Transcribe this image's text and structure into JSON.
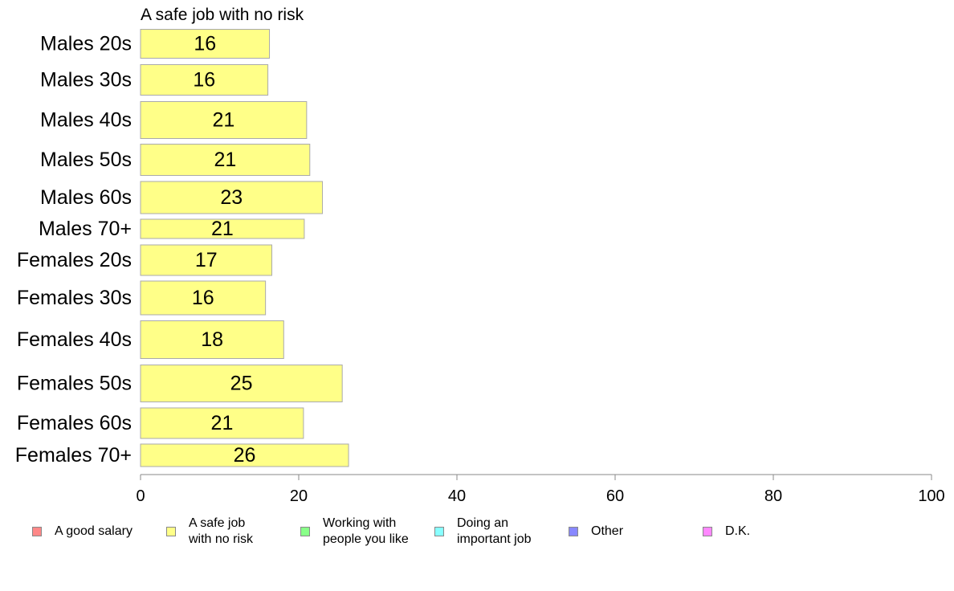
{
  "chart_data": {
    "type": "bar",
    "orientation": "horizontal",
    "title": "A safe job with no risk",
    "categories": [
      "Males 20s",
      "Males 30s",
      "Males 40s",
      "Males 50s",
      "Males 60s",
      "Males 70+",
      "Females 20s",
      "Females 30s",
      "Females 40s",
      "Females 50s",
      "Females 60s",
      "Females 70+"
    ],
    "series": [
      {
        "name": "A safe job\nwith no risk",
        "color": "#ffff88",
        "values": [
          16.3,
          16.1,
          21.0,
          21.4,
          23.0,
          20.7,
          16.6,
          15.8,
          18.1,
          25.5,
          20.6,
          26.3
        ],
        "labels": [
          "16",
          "16",
          "21",
          "21",
          "23",
          "21",
          "17",
          "16",
          "18",
          "25",
          "21",
          "26"
        ]
      }
    ],
    "xlim": [
      0,
      100
    ],
    "xticks": [
      "0",
      "20",
      "40",
      "60",
      "80",
      "100"
    ],
    "grid": false
  },
  "legend": {
    "placement": "bottom",
    "items": [
      {
        "label": "A good salary",
        "color": "#ff8888"
      },
      {
        "label": "A safe job\nwith no risk",
        "color": "#ffff88"
      },
      {
        "label": "Working with\npeople you like",
        "color": "#88ff88"
      },
      {
        "label": "Doing an\nimportant job",
        "color": "#88ffff"
      },
      {
        "label": "Other",
        "color": "#8888ff"
      },
      {
        "label": "D.K.",
        "color": "#ff88ff"
      }
    ]
  }
}
